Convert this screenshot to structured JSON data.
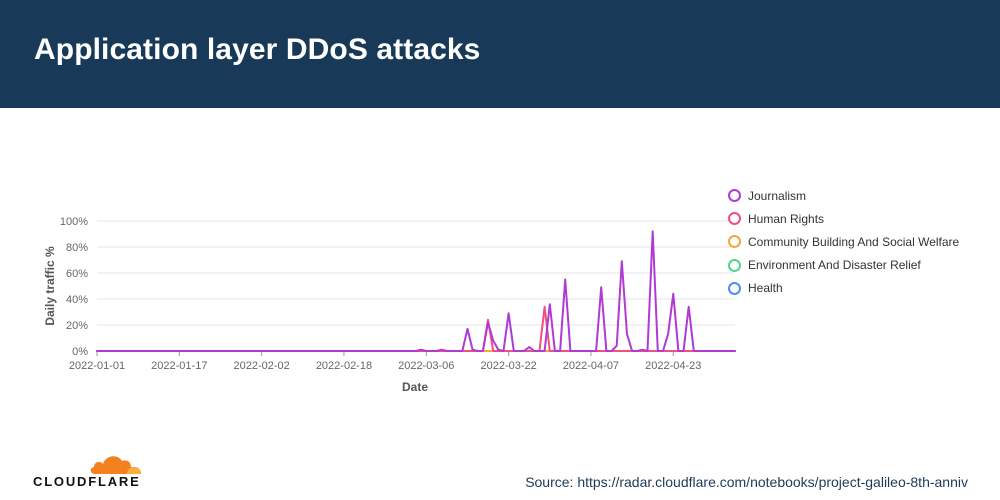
{
  "header": {
    "title": "Application layer DDoS attacks"
  },
  "footer": {
    "logo_text": "CLOUDFLARE",
    "source": "Source: https://radar.cloudflare.com/notebooks/project-galileo-8th-anniv"
  },
  "colors": {
    "header_bg": "#183a58",
    "journalism": "#b03ad4",
    "human_rights": "#f0507a",
    "community": "#f2a93b",
    "environment": "#4fd68a",
    "health": "#4c8ff0",
    "logo_orange": "#f48120"
  },
  "chart_data": {
    "type": "line",
    "xlabel": "Date",
    "ylabel": "Daily traffic %",
    "x_start": "2022-01-01",
    "x_end": "2022-05-05",
    "x_ticks": [
      "2022-01-01",
      "2022-01-17",
      "2022-02-02",
      "2022-02-18",
      "2022-03-06",
      "2022-03-22",
      "2022-04-07",
      "2022-04-23"
    ],
    "y_ticks": [
      "0%",
      "20%",
      "40%",
      "60%",
      "80%",
      "100%"
    ],
    "ylim": [
      0,
      100
    ],
    "grid": true,
    "legend_position": "right",
    "series": [
      {
        "name": "Journalism",
        "color": "#b03ad4",
        "points": [
          [
            "2022-01-01",
            0
          ],
          [
            "2022-03-04",
            0
          ],
          [
            "2022-03-05",
            1
          ],
          [
            "2022-03-06",
            0
          ],
          [
            "2022-03-08",
            0
          ],
          [
            "2022-03-09",
            1
          ],
          [
            "2022-03-10",
            0
          ],
          [
            "2022-03-13",
            0
          ],
          [
            "2022-03-14",
            17
          ],
          [
            "2022-03-15",
            1
          ],
          [
            "2022-03-16",
            0
          ],
          [
            "2022-03-17",
            0
          ],
          [
            "2022-03-18",
            22
          ],
          [
            "2022-03-19",
            8
          ],
          [
            "2022-03-20",
            1
          ],
          [
            "2022-03-21",
            0
          ],
          [
            "2022-03-22",
            29
          ],
          [
            "2022-03-23",
            0
          ],
          [
            "2022-03-25",
            0
          ],
          [
            "2022-03-26",
            3
          ],
          [
            "2022-03-27",
            0
          ],
          [
            "2022-03-29",
            0
          ],
          [
            "2022-03-30",
            36
          ],
          [
            "2022-03-31",
            0
          ],
          [
            "2022-04-01",
            0
          ],
          [
            "2022-04-02",
            55
          ],
          [
            "2022-04-03",
            0
          ],
          [
            "2022-04-08",
            0
          ],
          [
            "2022-04-09",
            49
          ],
          [
            "2022-04-10",
            0
          ],
          [
            "2022-04-11",
            0
          ],
          [
            "2022-04-12",
            4
          ],
          [
            "2022-04-13",
            69
          ],
          [
            "2022-04-14",
            13
          ],
          [
            "2022-04-15",
            0
          ],
          [
            "2022-04-16",
            0
          ],
          [
            "2022-04-17",
            1
          ],
          [
            "2022-04-18",
            0
          ],
          [
            "2022-04-19",
            92
          ],
          [
            "2022-04-20",
            0
          ],
          [
            "2022-04-21",
            0
          ],
          [
            "2022-04-22",
            13
          ],
          [
            "2022-04-23",
            44
          ],
          [
            "2022-04-24",
            0
          ],
          [
            "2022-04-25",
            0
          ],
          [
            "2022-04-26",
            34
          ],
          [
            "2022-04-27",
            0
          ],
          [
            "2022-05-05",
            0
          ]
        ]
      },
      {
        "name": "Human Rights",
        "color": "#f0507a",
        "points": [
          [
            "2022-01-01",
            0
          ],
          [
            "2022-03-17",
            0
          ],
          [
            "2022-03-18",
            24
          ],
          [
            "2022-03-19",
            0
          ],
          [
            "2022-03-28",
            0
          ],
          [
            "2022-03-29",
            34
          ],
          [
            "2022-03-30",
            0
          ],
          [
            "2022-05-05",
            0
          ]
        ]
      },
      {
        "name": "Community Building And Social Welfare",
        "color": "#f2a93b",
        "points": [
          [
            "2022-01-01",
            0
          ],
          [
            "2022-05-05",
            0
          ]
        ]
      },
      {
        "name": "Environment And Disaster Relief",
        "color": "#4fd68a",
        "points": [
          [
            "2022-01-01",
            0
          ],
          [
            "2022-05-05",
            0
          ]
        ]
      },
      {
        "name": "Health",
        "color": "#4c8ff0",
        "points": [
          [
            "2022-01-01",
            0
          ],
          [
            "2022-05-05",
            0
          ]
        ]
      }
    ]
  }
}
